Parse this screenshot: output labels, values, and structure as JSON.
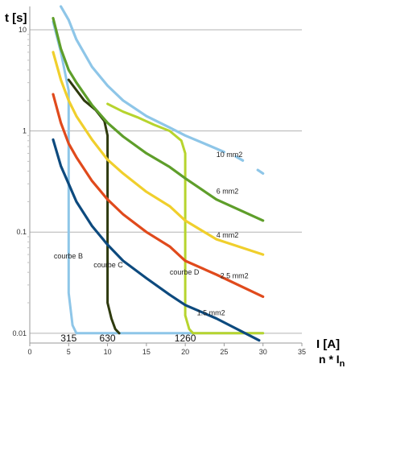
{
  "chart_data": {
    "type": "line",
    "title": "",
    "xlabel": "n * In",
    "xlabel_main": "n * I",
    "xlabel_sub": "n",
    "x_unit_label": "I [A]",
    "ylabel": "t [s]",
    "xlim": [
      0,
      35
    ],
    "ylim": [
      0.008,
      17
    ],
    "yscale": "log",
    "grid": {
      "x": false,
      "y": true
    },
    "x_ticks": [
      "0",
      "5",
      "10",
      "15",
      "20",
      "25",
      "30",
      "35"
    ],
    "y_ticks": [
      {
        "label": "10",
        "value": 10
      },
      {
        "label": "1",
        "value": 1
      },
      {
        "label": "0.1",
        "value": 0.1
      },
      {
        "label": "0.01",
        "value": 0.01
      }
    ],
    "calibre_labels": [
      {
        "text": "315",
        "x": 5
      },
      {
        "text": "630",
        "x": 10
      },
      {
        "text": "1260",
        "x": 20
      }
    ],
    "series": [
      {
        "name": "10 mm2",
        "color": "#8ec6e8",
        "label_at": [
          24.0,
          0.55
        ],
        "points": [
          [
            4.0,
            17
          ],
          [
            5,
            12.5
          ],
          [
            6,
            8
          ],
          [
            8,
            4.3
          ],
          [
            10,
            2.8
          ],
          [
            12,
            2.0
          ],
          [
            15,
            1.4
          ],
          [
            18,
            1.08
          ],
          [
            20,
            0.9
          ],
          [
            23,
            0.72
          ],
          [
            25,
            0.62
          ]
        ],
        "dashed_tail": [
          [
            28,
            0.48
          ],
          [
            30,
            0.38
          ]
        ]
      },
      {
        "name": "6 mm2",
        "color": "#5e9e2a",
        "label_at": [
          24.0,
          0.24
        ],
        "points": [
          [
            3,
            13
          ],
          [
            4,
            6.5
          ],
          [
            5,
            4.0
          ],
          [
            6,
            3.0
          ],
          [
            8,
            1.8
          ],
          [
            10,
            1.2
          ],
          [
            12,
            0.88
          ],
          [
            15,
            0.6
          ],
          [
            18,
            0.44
          ],
          [
            20,
            0.34
          ],
          [
            24,
            0.21
          ],
          [
            30,
            0.13
          ]
        ]
      },
      {
        "name": "4 mm2",
        "color": "#f0cf2c",
        "label_at": [
          24.0,
          0.088
        ],
        "points": [
          [
            3,
            6
          ],
          [
            4,
            3.2
          ],
          [
            5,
            2.0
          ],
          [
            6,
            1.4
          ],
          [
            8,
            0.82
          ],
          [
            10,
            0.52
          ],
          [
            12,
            0.38
          ],
          [
            15,
            0.25
          ],
          [
            18,
            0.18
          ],
          [
            20,
            0.13
          ],
          [
            24,
            0.085
          ],
          [
            30,
            0.06
          ]
        ]
      },
      {
        "name": "2.5 mm2",
        "color": "#e04a1c",
        "label_at": [
          24.5,
          0.035
        ],
        "points": [
          [
            3,
            2.3
          ],
          [
            4,
            1.2
          ],
          [
            5,
            0.75
          ],
          [
            6,
            0.55
          ],
          [
            8,
            0.32
          ],
          [
            10,
            0.21
          ],
          [
            12,
            0.15
          ],
          [
            15,
            0.1
          ],
          [
            18,
            0.072
          ],
          [
            20,
            0.052
          ],
          [
            24,
            0.038
          ],
          [
            30,
            0.023
          ]
        ]
      },
      {
        "name": "1.5 mm2",
        "color": "#0d4a7e",
        "label_at": [
          21.5,
          0.015
        ],
        "points": [
          [
            3,
            0.82
          ],
          [
            4,
            0.45
          ],
          [
            5,
            0.3
          ],
          [
            6,
            0.2
          ],
          [
            8,
            0.115
          ],
          [
            10,
            0.075
          ],
          [
            12,
            0.052
          ],
          [
            15,
            0.035
          ],
          [
            18,
            0.024
          ],
          [
            20,
            0.019
          ],
          [
            24,
            0.014
          ],
          [
            29.5,
            0.0085
          ]
        ]
      },
      {
        "name": "courbe B",
        "color": "#8ec6e8",
        "label_at": [
          3.1,
          0.055
        ],
        "points": [
          [
            3.0,
            12
          ],
          [
            4.0,
            6.0
          ],
          [
            5.0,
            2.5
          ],
          [
            5.0,
            0.025
          ],
          [
            5.5,
            0.012
          ],
          [
            6.0,
            0.01
          ],
          [
            30,
            0.01
          ]
        ]
      },
      {
        "name": "courbe C",
        "color": "#2e3a0e",
        "label_at": [
          8.2,
          0.045
        ],
        "points": [
          [
            5,
            3.2
          ],
          [
            7,
            2.0
          ],
          [
            8.5,
            1.6
          ],
          [
            9.6,
            1.25
          ],
          [
            10.0,
            0.9
          ],
          [
            10.0,
            0.02
          ],
          [
            10.5,
            0.014
          ],
          [
            11.0,
            0.011
          ],
          [
            11.5,
            0.01
          ]
        ]
      },
      {
        "name": "courbe D",
        "color": "#b7d42e",
        "label_at": [
          18.0,
          0.038
        ],
        "points": [
          [
            10,
            1.85
          ],
          [
            12,
            1.55
          ],
          [
            14,
            1.35
          ],
          [
            16,
            1.15
          ],
          [
            18,
            1.0
          ],
          [
            19.5,
            0.8
          ],
          [
            20.0,
            0.6
          ],
          [
            20.0,
            0.015
          ],
          [
            20.5,
            0.011
          ],
          [
            21,
            0.01
          ],
          [
            30,
            0.01
          ]
        ]
      }
    ]
  }
}
